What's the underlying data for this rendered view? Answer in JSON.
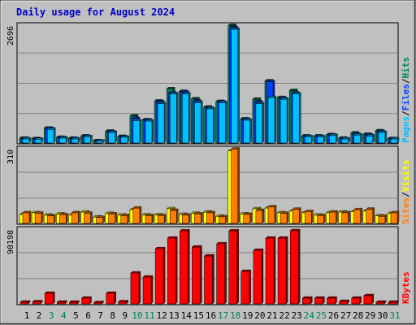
{
  "title": "Daily usage for August 2024",
  "colors": {
    "hits": "#00805c",
    "files": "#0040ff",
    "pages": "#00c0ff",
    "visits": "#ffff00",
    "sites": "#ff8000",
    "kbytes": "#ff0000",
    "weekday_label": "#000000",
    "weekend_label": "#00805c",
    "legend_separator": "#000000"
  },
  "legend_separator": "/",
  "chart_data": [
    {
      "type": "bar",
      "panel": "hits-files-pages",
      "ymax_label": "2696",
      "ylim": [
        0,
        2696
      ],
      "categories": [
        "1",
        "2",
        "3",
        "4",
        "5",
        "6",
        "7",
        "8",
        "9",
        "10",
        "11",
        "12",
        "13",
        "14",
        "15",
        "16",
        "17",
        "18",
        "19",
        "20",
        "21",
        "22",
        "23",
        "24",
        "25",
        "26",
        "27",
        "28",
        "29",
        "30",
        "31"
      ],
      "weekend_days": [
        "3",
        "4",
        "10",
        "11",
        "17",
        "18",
        "24",
        "25",
        "31"
      ],
      "legend": [
        "Hits",
        "Files",
        "Pages"
      ],
      "series": [
        {
          "name": "Hits",
          "values": [
            110,
            100,
            340,
            130,
            110,
            160,
            50,
            270,
            150,
            620,
            530,
            960,
            1240,
            1180,
            1010,
            820,
            950,
            2690,
            550,
            1000,
            1420,
            1040,
            1200,
            160,
            160,
            190,
            110,
            230,
            200,
            280,
            100
          ]
        },
        {
          "name": "Files",
          "values": [
            100,
            90,
            330,
            120,
            100,
            150,
            45,
            260,
            140,
            560,
            520,
            940,
            1140,
            1160,
            960,
            800,
            940,
            2640,
            540,
            940,
            1400,
            1020,
            1140,
            150,
            150,
            180,
            100,
            200,
            180,
            260,
            95
          ]
        },
        {
          "name": "Pages",
          "values": [
            90,
            80,
            310,
            110,
            90,
            140,
            40,
            240,
            130,
            510,
            500,
            900,
            1120,
            1120,
            920,
            780,
            920,
            2600,
            520,
            900,
            1040,
            1000,
            1120,
            140,
            140,
            170,
            90,
            180,
            160,
            240,
            90
          ]
        }
      ]
    },
    {
      "type": "bar",
      "panel": "visits-sites",
      "ymax_label": "310",
      "ylim": [
        0,
        310
      ],
      "categories": [
        "1",
        "2",
        "3",
        "4",
        "5",
        "6",
        "7",
        "8",
        "9",
        "10",
        "11",
        "12",
        "13",
        "14",
        "15",
        "16",
        "17",
        "18",
        "19",
        "20",
        "21",
        "22",
        "23",
        "24",
        "25",
        "26",
        "27",
        "28",
        "29",
        "30",
        "31"
      ],
      "legend": [
        "Sites",
        "Visits"
      ],
      "series": [
        {
          "name": "Visits",
          "values": [
            38,
            45,
            35,
            40,
            35,
            48,
            27,
            42,
            35,
            58,
            36,
            36,
            62,
            38,
            43,
            48,
            30,
            308,
            40,
            62,
            65,
            45,
            52,
            45,
            35,
            45,
            48,
            50,
            52,
            32,
            42
          ]
        },
        {
          "name": "Sites",
          "values": [
            45,
            43,
            32,
            37,
            45,
            43,
            25,
            40,
            33,
            65,
            33,
            33,
            55,
            35,
            40,
            45,
            28,
            315,
            38,
            55,
            70,
            42,
            60,
            50,
            33,
            48,
            45,
            58,
            60,
            30,
            45
          ]
        }
      ]
    },
    {
      "type": "bar",
      "panel": "kbytes",
      "ymax_label": "90198",
      "ylim": [
        0,
        90198
      ],
      "categories": [
        "1",
        "2",
        "3",
        "4",
        "5",
        "6",
        "7",
        "8",
        "9",
        "10",
        "11",
        "12",
        "13",
        "14",
        "15",
        "16",
        "17",
        "18",
        "19",
        "20",
        "21",
        "22",
        "23",
        "24",
        "25",
        "26",
        "27",
        "28",
        "29",
        "30",
        "31"
      ],
      "legend": [
        "KBytes"
      ],
      "series": [
        {
          "name": "KBytes",
          "values": [
            2000,
            2500,
            13000,
            2000,
            2000,
            7000,
            1500,
            13000,
            2500,
            38000,
            33000,
            68000,
            81000,
            90000,
            70000,
            59000,
            74000,
            90000,
            40000,
            66000,
            81000,
            81000,
            90198,
            7000,
            7000,
            7000,
            3000,
            7000,
            10000,
            2000,
            2000
          ]
        }
      ]
    }
  ]
}
